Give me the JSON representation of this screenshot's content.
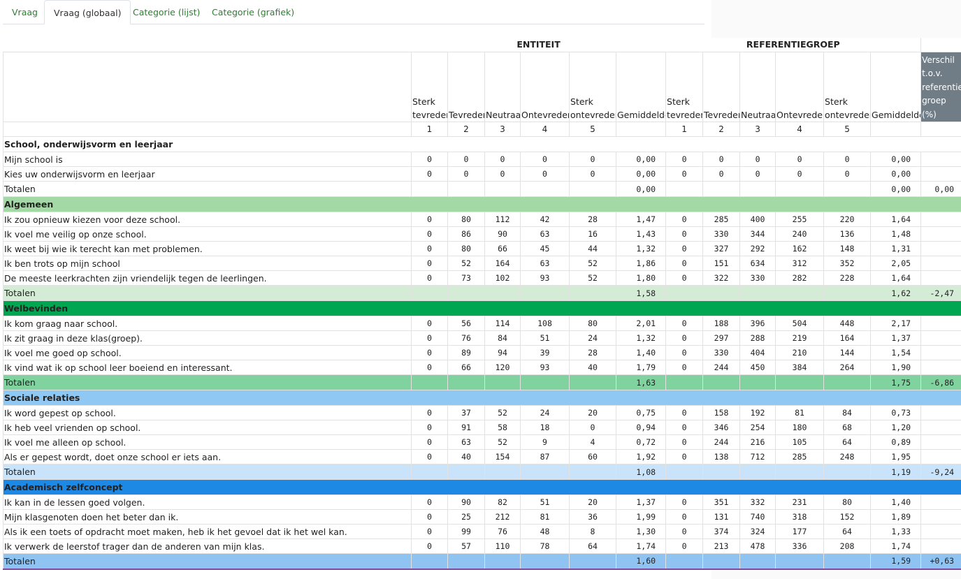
{
  "tabs": [
    {
      "label": "Vraag",
      "active": false
    },
    {
      "label": "Vraag (globaal)",
      "active": true
    },
    {
      "label": "Categorie (lijst)",
      "active": false
    },
    {
      "label": "Categorie (grafiek)",
      "active": false
    }
  ],
  "table": {
    "group_headers": {
      "entity": "ENTITEIT",
      "reference": "REFERENTIEGROEP"
    },
    "column_labels": [
      "Sterk tevreden",
      "Tevreden",
      "Neutraal",
      "Ontevreden",
      "Sterk ontevreden",
      "Gemiddelde",
      "Sterk tevreden",
      "Tevreden",
      "Neutraal",
      "Ontevreden",
      "Sterk ontevreden",
      "Gemiddelde",
      "Verschil t.o.v. referentie groep (%)"
    ],
    "column_numbers": [
      "1",
      "2",
      "3",
      "4",
      "5",
      "",
      "1",
      "2",
      "3",
      "4",
      "5",
      "",
      ""
    ],
    "sections": [
      {
        "title": "School, onderwijsvorm en leerjaar",
        "header_color": "#ffffff",
        "total_color": "#ffffff",
        "rows": [
          {
            "label": "Mijn school is",
            "values": [
              "0",
              "0",
              "0",
              "0",
              "0",
              "0,00",
              "0",
              "0",
              "0",
              "0",
              "0",
              "0,00"
            ]
          },
          {
            "label": "Kies uw onderwijsvorm en leerjaar",
            "values": [
              "0",
              "0",
              "0",
              "0",
              "0",
              "0,00",
              "0",
              "0",
              "0",
              "0",
              "0",
              "0,00"
            ]
          }
        ],
        "total": {
          "label": "Totalen",
          "avg": "0,00",
          "ref_avg": "0,00",
          "diff": "0,00"
        }
      },
      {
        "title": "Algemeen",
        "header_color": "#a3d9a5",
        "total_color": "#d4ecd5",
        "rows": [
          {
            "label": "Ik zou opnieuw kiezen voor deze school.",
            "values": [
              "0",
              "80",
              "112",
              "42",
              "28",
              "1,47",
              "0",
              "285",
              "400",
              "255",
              "220",
              "1,64"
            ]
          },
          {
            "label": "Ik voel me veilig op onze school.",
            "values": [
              "0",
              "86",
              "90",
              "63",
              "16",
              "1,43",
              "0",
              "330",
              "344",
              "240",
              "136",
              "1,48"
            ]
          },
          {
            "label": "Ik weet bij wie ik terecht kan met problemen.",
            "values": [
              "0",
              "80",
              "66",
              "45",
              "44",
              "1,32",
              "0",
              "327",
              "292",
              "162",
              "148",
              "1,31"
            ]
          },
          {
            "label": "Ik ben trots op mijn school",
            "values": [
              "0",
              "52",
              "164",
              "63",
              "52",
              "1,86",
              "0",
              "151",
              "634",
              "312",
              "352",
              "2,05"
            ]
          },
          {
            "label": "De meeste leerkrachten zijn vriendelijk tegen de leerlingen.",
            "values": [
              "0",
              "73",
              "102",
              "93",
              "52",
              "1,80",
              "0",
              "322",
              "330",
              "282",
              "228",
              "1,64"
            ]
          }
        ],
        "total": {
          "label": "Totalen",
          "avg": "1,58",
          "ref_avg": "1,62",
          "diff": "-2,47"
        }
      },
      {
        "title": "Welbevinden",
        "header_color": "#00a651",
        "total_color": "#80d29f",
        "rows": [
          {
            "label": "Ik kom graag naar school.",
            "values": [
              "0",
              "56",
              "114",
              "108",
              "80",
              "2,01",
              "0",
              "188",
              "396",
              "504",
              "448",
              "2,17"
            ]
          },
          {
            "label": "Ik zit graag in deze klas(groep).",
            "values": [
              "0",
              "76",
              "84",
              "51",
              "24",
              "1,32",
              "0",
              "297",
              "288",
              "219",
              "164",
              "1,37"
            ]
          },
          {
            "label": "Ik voel me goed op school.",
            "values": [
              "0",
              "89",
              "94",
              "39",
              "28",
              "1,40",
              "0",
              "330",
              "404",
              "210",
              "144",
              "1,54"
            ]
          },
          {
            "label": "Ik vind wat ik op school leer boeiend en interessant.",
            "values": [
              "0",
              "66",
              "120",
              "93",
              "40",
              "1,79",
              "0",
              "244",
              "450",
              "384",
              "264",
              "1,90"
            ]
          }
        ],
        "total": {
          "label": "Totalen",
          "avg": "1,63",
          "ref_avg": "1,75",
          "diff": "-6,86"
        }
      },
      {
        "title": "Sociale relaties",
        "header_color": "#90c8f4",
        "total_color": "#c8e3fa",
        "rows": [
          {
            "label": "Ik word gepest op school.",
            "values": [
              "0",
              "37",
              "52",
              "24",
              "20",
              "0,75",
              "0",
              "158",
              "192",
              "81",
              "84",
              "0,73"
            ]
          },
          {
            "label": "Ik heb veel vrienden op school.",
            "values": [
              "0",
              "91",
              "58",
              "18",
              "0",
              "0,94",
              "0",
              "346",
              "254",
              "180",
              "68",
              "1,20"
            ]
          },
          {
            "label": "Ik voel me alleen op school.",
            "values": [
              "0",
              "63",
              "52",
              "9",
              "4",
              "0,72",
              "0",
              "244",
              "216",
              "105",
              "64",
              "0,89"
            ]
          },
          {
            "label": "Als er gepest wordt, doet onze school er iets aan.",
            "values": [
              "0",
              "40",
              "154",
              "87",
              "60",
              "1,92",
              "0",
              "138",
              "712",
              "285",
              "248",
              "1,95"
            ]
          }
        ],
        "total": {
          "label": "Totalen",
          "avg": "1,08",
          "ref_avg": "1,19",
          "diff": "-9,24"
        }
      },
      {
        "title": "Academisch zelfconcept",
        "header_color": "#1e88e5",
        "total_color": "#8fc3f2",
        "rows": [
          {
            "label": "Ik kan in de lessen goed volgen.",
            "values": [
              "0",
              "90",
              "82",
              "51",
              "20",
              "1,37",
              "0",
              "351",
              "332",
              "231",
              "80",
              "1,40"
            ]
          },
          {
            "label": "Mijn klasgenoten doen het beter dan ik.",
            "values": [
              "0",
              "25",
              "212",
              "81",
              "36",
              "1,99",
              "0",
              "131",
              "740",
              "318",
              "152",
              "1,89"
            ]
          },
          {
            "label": "Als ik een toets of opdracht moet maken, heb ik het gevoel dat ik het wel kan.",
            "values": [
              "0",
              "99",
              "76",
              "48",
              "8",
              "1,30",
              "0",
              "374",
              "324",
              "177",
              "64",
              "1,33"
            ]
          },
          {
            "label": "Ik verwerk de leerstof trager dan de anderen van mijn klas.",
            "values": [
              "0",
              "57",
              "110",
              "78",
              "64",
              "1,74",
              "0",
              "213",
              "478",
              "336",
              "208",
              "1,74"
            ]
          }
        ],
        "total": {
          "label": "Totalen",
          "avg": "1,60",
          "ref_avg": "1,59",
          "diff": "+0,63"
        }
      }
    ]
  }
}
